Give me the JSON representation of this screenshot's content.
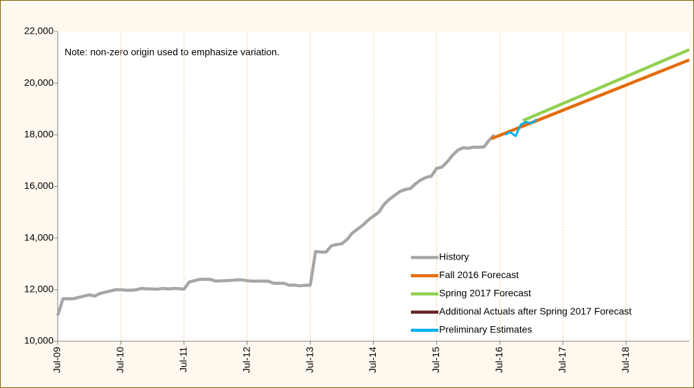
{
  "chart_data": {
    "type": "line",
    "annotation": "Note: non-zero origin used to emphasize variation.",
    "xlim": [
      0,
      120
    ],
    "xticks": [
      {
        "value": 0,
        "label": "Jul-09"
      },
      {
        "value": 12,
        "label": "Jul-10"
      },
      {
        "value": 24,
        "label": "Jul-11"
      },
      {
        "value": 36,
        "label": "Jul-12"
      },
      {
        "value": 48,
        "label": "Jul-13"
      },
      {
        "value": 60,
        "label": "Jul-14"
      },
      {
        "value": 72,
        "label": "Jul-15"
      },
      {
        "value": 84,
        "label": "Jul-16"
      },
      {
        "value": 96,
        "label": "Jul-17"
      },
      {
        "value": 108,
        "label": "Jul-18"
      }
    ],
    "ylim": [
      10000,
      22000
    ],
    "yticks": [
      {
        "value": 10000,
        "label": "10,000"
      },
      {
        "value": 12000,
        "label": "12,000"
      },
      {
        "value": 14000,
        "label": "14,000"
      },
      {
        "value": 16000,
        "label": "16,000"
      },
      {
        "value": 18000,
        "label": "18,000"
      },
      {
        "value": 20000,
        "label": "20,000"
      },
      {
        "value": 22000,
        "label": "22,000"
      }
    ],
    "grid": true,
    "legend": "lower right",
    "series": [
      {
        "name": "History",
        "color": "#a6a6a6",
        "x": [
          0,
          1,
          2,
          3,
          4,
          5,
          6,
          7,
          8,
          9,
          10,
          11,
          12,
          13,
          14,
          15,
          16,
          17,
          18,
          19,
          20,
          21,
          22,
          23,
          24,
          25,
          26,
          27,
          28,
          29,
          30,
          31,
          32,
          33,
          34,
          35,
          36,
          37,
          38,
          39,
          40,
          41,
          42,
          43,
          44,
          45,
          46,
          47,
          48,
          49,
          50,
          51,
          52,
          53,
          54,
          55,
          56,
          57,
          58,
          59,
          60,
          61,
          62,
          63,
          64,
          65,
          66,
          67,
          68,
          69,
          70,
          71,
          72,
          73,
          74,
          75,
          76,
          77,
          78,
          79,
          80,
          81,
          82,
          83
        ],
        "values": [
          11000,
          11650,
          11650,
          11650,
          11700,
          11750,
          11800,
          11750,
          11850,
          11900,
          11950,
          12000,
          12000,
          11980,
          11980,
          12000,
          12050,
          12030,
          12030,
          12020,
          12050,
          12030,
          12050,
          12040,
          12020,
          12300,
          12350,
          12400,
          12400,
          12400,
          12330,
          12340,
          12350,
          12360,
          12380,
          12380,
          12350,
          12330,
          12330,
          12330,
          12330,
          12250,
          12250,
          12250,
          12170,
          12180,
          12150,
          12170,
          12180,
          13480,
          13460,
          13460,
          13700,
          13750,
          13780,
          13950,
          14200,
          14350,
          14500,
          14700,
          14850,
          15000,
          15300,
          15500,
          15650,
          15800,
          15880,
          15920,
          16100,
          16250,
          16350,
          16400,
          16700,
          16750,
          16950,
          17200,
          17400,
          17500,
          17480,
          17520,
          17520,
          17530,
          17800,
          18000
        ]
      },
      {
        "name": "Fall 2016 Forecast",
        "color": "#e36c09",
        "x": [
          82.4,
          120
        ],
        "values": [
          17850,
          20900
        ]
      },
      {
        "name": "Spring 2017 Forecast",
        "color": "#92d050",
        "x": [
          88.4,
          120
        ],
        "values": [
          18550,
          21300
        ]
      },
      {
        "name": "Additional Actuals after Spring 2017 Forecast",
        "color": "#632523",
        "x": [],
        "values": []
      },
      {
        "name": "Preliminary Estimates",
        "color": "#00b0f0",
        "x": [
          85,
          86,
          87,
          88,
          89,
          90,
          91
        ],
        "values": [
          18000,
          18100,
          17950,
          18400,
          18500,
          18450,
          18600
        ]
      }
    ]
  }
}
